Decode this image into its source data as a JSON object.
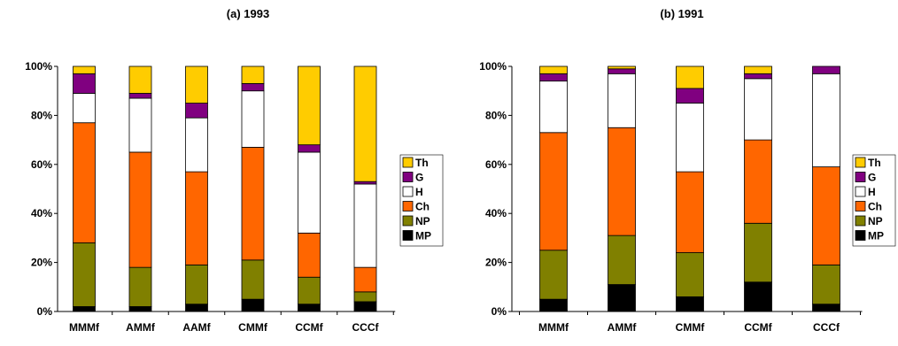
{
  "colors": {
    "Th": "#FFCC00",
    "G": "#800080",
    "H": "#FFFFFF",
    "Ch": "#FF6600",
    "NP": "#808000",
    "MP": "#000000"
  },
  "chart_data": [
    {
      "type": "bar",
      "stacked": true,
      "normalized": true,
      "title": "(a) 1993",
      "categories": [
        "MMMf",
        "AMMf",
        "AAMf",
        "CMMf",
        "CCMf",
        "CCCf"
      ],
      "ylim": [
        0,
        100
      ],
      "yticks": [
        "0%",
        "20%",
        "40%",
        "60%",
        "80%",
        "100%"
      ],
      "legend_position": "right",
      "series": [
        {
          "name": "MP",
          "values": [
            2,
            2,
            3,
            5,
            3,
            4
          ]
        },
        {
          "name": "NP",
          "values": [
            26,
            16,
            16,
            16,
            11,
            4
          ]
        },
        {
          "name": "Ch",
          "values": [
            49,
            47,
            38,
            46,
            18,
            10
          ]
        },
        {
          "name": "H",
          "values": [
            12,
            22,
            22,
            23,
            33,
            34
          ]
        },
        {
          "name": "G",
          "values": [
            8,
            2,
            6,
            3,
            3,
            1
          ]
        },
        {
          "name": "Th",
          "values": [
            3,
            11,
            15,
            7,
            32,
            47
          ]
        }
      ]
    },
    {
      "type": "bar",
      "stacked": true,
      "normalized": true,
      "title": "(b) 1991",
      "categories": [
        "MMMf",
        "AMMf",
        "CMMf",
        "CCMf",
        "CCCf"
      ],
      "ylim": [
        0,
        100
      ],
      "yticks": [
        "0%",
        "20%",
        "40%",
        "60%",
        "80%",
        "100%"
      ],
      "legend_position": "right",
      "series": [
        {
          "name": "MP",
          "values": [
            5,
            11,
            6,
            12,
            3
          ]
        },
        {
          "name": "NP",
          "values": [
            20,
            20,
            18,
            24,
            16
          ]
        },
        {
          "name": "Ch",
          "values": [
            48,
            44,
            33,
            34,
            40
          ]
        },
        {
          "name": "H",
          "values": [
            21,
            22,
            28,
            25,
            38
          ]
        },
        {
          "name": "G",
          "values": [
            3,
            2,
            6,
            2,
            3
          ]
        },
        {
          "name": "Th",
          "values": [
            3,
            1,
            9,
            3,
            0
          ]
        }
      ]
    }
  ]
}
